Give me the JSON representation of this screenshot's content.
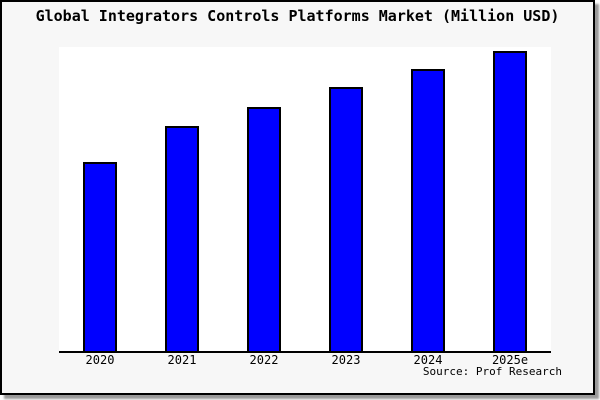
{
  "chart_data": {
    "type": "bar",
    "title": "Global Integrators Controls Platforms Market (Million USD)",
    "categories": [
      "2020",
      "2021",
      "2022",
      "2023",
      "2024",
      "2025e"
    ],
    "values": [
      63,
      75,
      81.5,
      88,
      94,
      100
    ],
    "value_unit": "Million USD",
    "xlabel": "",
    "ylabel": "",
    "ylim": [
      0,
      101.3
    ],
    "y_axis_visible": false,
    "grid": false,
    "legend": "none",
    "bar_fill": "#0000ff",
    "bar_border": "#000000",
    "values_note": "relative bar heights; no numeric y-axis shown, 2025e bar normalized to 100"
  },
  "source_text": "Source: Prof Research",
  "colors": {
    "page_background": "#f7f7f7",
    "plot_background": "#ffffff",
    "frame_border": "#000000",
    "axis_line": "#000000",
    "shadow": "#999999",
    "text": "#000000"
  }
}
